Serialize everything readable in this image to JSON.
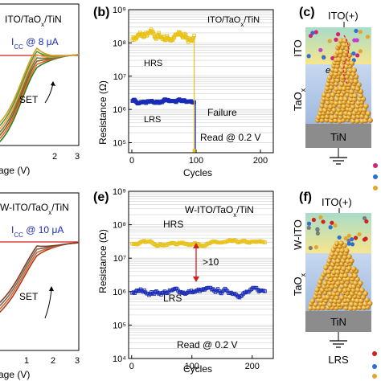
{
  "colors": {
    "hrs": "#e8c21a",
    "lrs": "#1a2bb5",
    "fail": "#1a2bb5",
    "blue_text": "#1a2bb5",
    "red_text": "#d21f1f",
    "ito_layer": "#f3e08a",
    "taox_layer": "#b8cde8",
    "tin_layer": "#8c8c8c",
    "filament": "#e5a52b"
  },
  "panel_a_fragment": {
    "title": "ITO/TaO",
    "title_sub": "x",
    "title_tail": "/TiN",
    "icc_label": "I",
    "icc_sub": "CC",
    "icc_value": " @ 8 μA",
    "set_label": "SET",
    "xlabel": "age (V)",
    "xticks": [
      "2",
      "3"
    ]
  },
  "panel_d_fragment": {
    "title": "W-ITO/TaO",
    "title_sub": "x",
    "title_tail": "/TiN",
    "icc_label": "I",
    "icc_sub": "CC",
    "icc_value": " @ 10 μA",
    "set_label": "SET",
    "xlabel": "age (V)",
    "xticks": [
      "1",
      "2",
      "3"
    ]
  },
  "chart_data": [
    {
      "panel": "(b)",
      "type": "scatter",
      "title": "ITO/TaOx/TiN",
      "xlabel": "Cycles",
      "ylabel": "Resistance (Ω)",
      "xlim": [
        -5,
        220
      ],
      "ylim": [
        50000,
        1000000000
      ],
      "yscale": "log",
      "grid": true,
      "xticks": [
        "0",
        "100",
        "200"
      ],
      "yticks": [
        "10⁵",
        "10⁶",
        "10⁷",
        "10⁸",
        "10⁹"
      ],
      "series": [
        {
          "name": "HRS",
          "x_range": [
            1,
            97
          ],
          "y_typical": 150000000,
          "y_jitter": [
            70000000,
            280000000
          ]
        },
        {
          "name": "LRS",
          "x_range": [
            1,
            97
          ],
          "y_typical": 1700000,
          "y_jitter": [
            1400000,
            2200000
          ]
        }
      ],
      "annotations": [
        "HRS",
        "LRS",
        "Failure",
        "Read @ 0.2 V"
      ],
      "failure_cycle": 97
    },
    {
      "panel": "(e)",
      "type": "scatter",
      "title": "W-ITO/TaOx/TiN",
      "xlabel": "Cycles",
      "ylabel": "Resistance (Ω)",
      "xlim": [
        -5,
        235
      ],
      "ylim": [
        10000,
        1000000000
      ],
      "yscale": "log",
      "grid": true,
      "xticks": [
        "0",
        "100",
        "200"
      ],
      "yticks": [
        "10⁴",
        "10⁵",
        "10⁶",
        "10⁷",
        "10⁸",
        "10⁹"
      ],
      "series": [
        {
          "name": "HRS",
          "x_range": [
            1,
            222
          ],
          "y_typical": 28000000,
          "y_jitter": [
            22000000,
            35000000
          ]
        },
        {
          "name": "LRS",
          "x_range": [
            1,
            222
          ],
          "y_typical": 1000000,
          "y_jitter": [
            550000,
            1300000
          ]
        }
      ],
      "annotations": [
        "W-ITO/TaOx/TiN",
        "HRS",
        "LRS",
        ">10",
        "Read @ 0.2 V"
      ]
    }
  ],
  "panel_c": {
    "label": "(c)",
    "top_electrode": "ITO(+)",
    "ito_label": "ITO",
    "taox_label": "TaO",
    "taox_sub": "x",
    "tin_label": "TiN",
    "electron": "e"
  },
  "panel_f": {
    "label": "(f)",
    "top_electrode": "ITO(+)",
    "ito_label": "W-ITO",
    "taox_label": "TaO",
    "taox_sub": "x",
    "tin_label": "TiN",
    "bottom_state": "LRS"
  },
  "panel_b_label": "(b)",
  "panel_e_label": "(e)"
}
